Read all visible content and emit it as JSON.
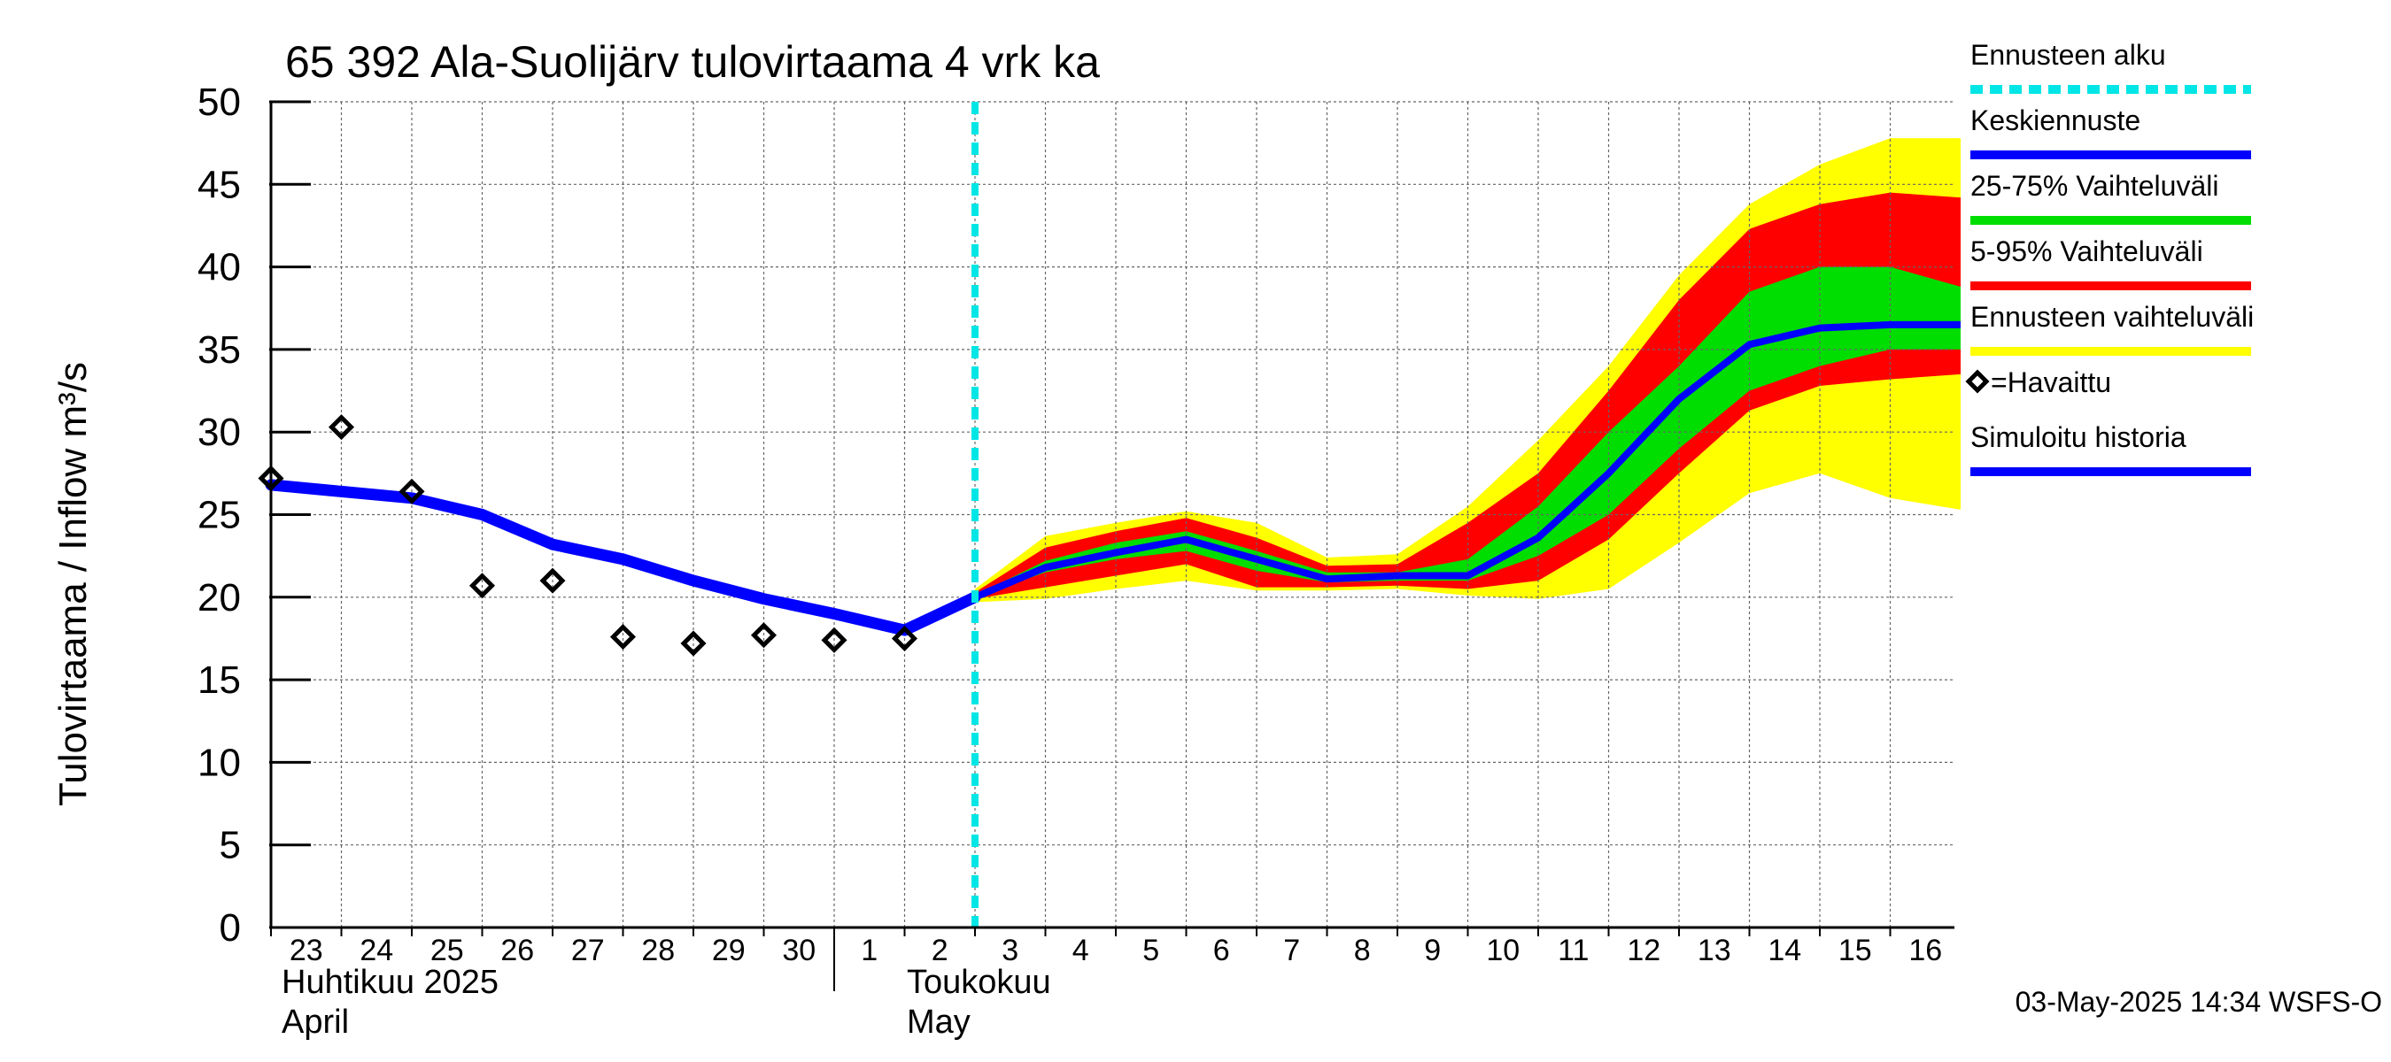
{
  "chart_data": {
    "type": "line",
    "title": "65 392 Ala-Suolijärv tulovirtaama 4 vrk ka",
    "ylabel": "Tulovirtaama / Inflow    m³/s",
    "ylim": [
      0,
      50
    ],
    "yticks": [
      0,
      5,
      10,
      15,
      20,
      25,
      30,
      35,
      40,
      45,
      50
    ],
    "x_dates": [
      "2025-04-23",
      "2025-04-24",
      "2025-04-25",
      "2025-04-26",
      "2025-04-27",
      "2025-04-28",
      "2025-04-29",
      "2025-04-30",
      "2025-05-01",
      "2025-05-02",
      "2025-05-03",
      "2025-05-04",
      "2025-05-05",
      "2025-05-06",
      "2025-05-07",
      "2025-05-08",
      "2025-05-09",
      "2025-05-10",
      "2025-05-11",
      "2025-05-12",
      "2025-05-13",
      "2025-05-14",
      "2025-05-15",
      "2025-05-16"
    ],
    "x_tick_labels": [
      "23",
      "24",
      "25",
      "26",
      "27",
      "28",
      "29",
      "30",
      "1",
      "2",
      "3",
      "4",
      "5",
      "6",
      "7",
      "8",
      "9",
      "10",
      "11",
      "12",
      "13",
      "14",
      "15",
      "16"
    ],
    "month_labels": [
      {
        "line1": "Huhtikuu  2025",
        "line2": "April",
        "start": "2025-04-23"
      },
      {
        "line1": "Toukokuu",
        "line2": "May",
        "start": "2025-05-01"
      }
    ],
    "forecast_start": "2025-05-03",
    "observed": {
      "name": "=Havaittu",
      "dates": [
        "2025-04-23",
        "2025-04-24",
        "2025-04-25",
        "2025-04-26",
        "2025-04-27",
        "2025-04-28",
        "2025-04-29",
        "2025-04-30",
        "2025-05-01",
        "2025-05-02"
      ],
      "values": [
        27.2,
        30.3,
        26.4,
        20.7,
        21.0,
        17.6,
        17.2,
        17.7,
        17.4,
        17.5
      ]
    },
    "simulated_history": {
      "name": "Simuloitu historia",
      "dates": [
        "2025-04-23",
        "2025-04-24",
        "2025-04-25",
        "2025-04-26",
        "2025-04-27",
        "2025-04-28",
        "2025-04-29",
        "2025-04-30",
        "2025-05-01",
        "2025-05-02",
        "2025-05-03"
      ],
      "values": [
        26.8,
        26.4,
        26.0,
        25.0,
        23.2,
        22.3,
        21.0,
        19.9,
        19.0,
        18.0,
        20.0
      ]
    },
    "forecast_dates": [
      "2025-05-03",
      "2025-05-04",
      "2025-05-05",
      "2025-05-06",
      "2025-05-07",
      "2025-05-08",
      "2025-05-09",
      "2025-05-10",
      "2025-05-11",
      "2025-05-12",
      "2025-05-13",
      "2025-05-14",
      "2025-05-15",
      "2025-05-16",
      "2025-05-17"
    ],
    "median_forecast": {
      "name": "Keskiennuste",
      "values": [
        20.0,
        21.8,
        22.7,
        23.5,
        22.3,
        21.1,
        21.3,
        21.3,
        23.6,
        27.5,
        32.0,
        35.3,
        36.3,
        36.5,
        36.5
      ]
    },
    "band_25_75": {
      "name": "25-75% Vaihteluväli",
      "lower": [
        20.0,
        21.5,
        22.3,
        22.8,
        21.6,
        20.9,
        21.0,
        21.0,
        22.5,
        25.0,
        29.0,
        32.5,
        34.0,
        35.0,
        35.0
      ],
      "upper": [
        20.1,
        22.2,
        23.3,
        24.0,
        22.8,
        21.5,
        21.5,
        22.3,
        25.5,
        30.0,
        34.0,
        38.5,
        40.0,
        40.0,
        38.8
      ]
    },
    "band_5_95": {
      "name": "5-95% Vaihteluväli",
      "lower": [
        19.9,
        20.6,
        21.3,
        22.0,
        20.6,
        20.6,
        20.7,
        20.5,
        21.0,
        23.5,
        27.5,
        31.3,
        32.8,
        33.2,
        33.5
      ],
      "upper": [
        20.3,
        23.0,
        24.0,
        24.8,
        23.6,
        21.9,
        22.0,
        24.5,
        27.5,
        32.5,
        38.0,
        42.3,
        43.8,
        44.5,
        44.2
      ]
    },
    "band_total": {
      "name": "Ennusteen vaihteluväli",
      "lower": [
        19.7,
        19.9,
        20.5,
        21.0,
        20.4,
        20.4,
        20.5,
        20.1,
        19.9,
        20.5,
        23.3,
        26.3,
        27.5,
        26.0,
        25.3
      ],
      "upper": [
        20.5,
        23.7,
        24.5,
        25.2,
        24.5,
        22.4,
        22.6,
        25.5,
        29.5,
        34.0,
        39.5,
        43.8,
        46.2,
        47.8,
        47.8
      ]
    },
    "legend": {
      "placement": "right",
      "items": [
        {
          "label": "Ennusteen alku",
          "color": "#00e5e5",
          "style": "dashed"
        },
        {
          "label": "Keskiennuste",
          "color": "#0000ff",
          "style": "line"
        },
        {
          "label": "25-75% Vaihteluväli",
          "color": "#00dd00",
          "style": "line"
        },
        {
          "label": "5-95% Vaihteluväli",
          "color": "#ff0000",
          "style": "line"
        },
        {
          "label": "Ennusteen vaihteluväli",
          "color": "#ffff00",
          "style": "line"
        },
        {
          "label": "=Havaittu",
          "color": "#000000",
          "style": "marker"
        },
        {
          "label": "Simuloitu historia",
          "color": "#0000ff",
          "style": "line"
        }
      ]
    },
    "colors": {
      "total": "#ffff00",
      "p5_95": "#ff0000",
      "p25_75": "#00dd00",
      "median": "#0000ff",
      "forecast_start": "#00e5e5",
      "observed": "#000000"
    },
    "grid": true
  },
  "footer": {
    "timestamp": "03-May-2025 14:34 WSFS-O"
  }
}
